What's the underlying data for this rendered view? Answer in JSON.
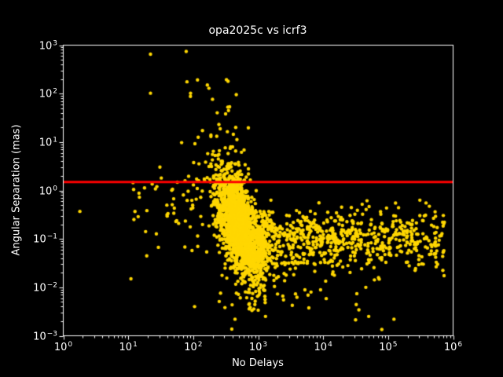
{
  "window": {
    "kind": "matplotlib-figure",
    "background": "#000000"
  },
  "chart_data": {
    "type": "scatter",
    "title": "opa2025c vs icrf3",
    "xlabel": "No Delays",
    "ylabel": "Angular Separation (mas)",
    "x_scale": "log",
    "y_scale": "log",
    "xlim": [
      1,
      1000000
    ],
    "ylim": [
      0.001,
      1000
    ],
    "grid": false,
    "legend": "none",
    "tick_base": "10",
    "x_tick_exponents": [
      0,
      1,
      2,
      3,
      4,
      5,
      6
    ],
    "x_tick_exp_display": [
      "0",
      "1",
      "2",
      "3",
      "4",
      "5",
      "6"
    ],
    "y_tick_exponents": [
      -3,
      -2,
      -1,
      0,
      1,
      2,
      3
    ],
    "y_tick_exp_display": [
      "−3",
      "−2",
      "−1",
      "0",
      "1",
      "2",
      "3"
    ],
    "colors": {
      "background": "#000000",
      "text": "#ffffff",
      "axes_frame": "#ffffff",
      "marker": "#ffd700",
      "reference_line": "#ff0000"
    },
    "marker": {
      "shape": "circle",
      "color": "#ffd700",
      "radius": 2.2
    },
    "reference_line": {
      "y": 1.5,
      "color": "#ff0000",
      "linewidth": 3
    },
    "notable_points": [
      [
        22,
        650
      ],
      [
        78,
        740
      ],
      [
        165,
        150
      ],
      [
        22,
        102
      ],
      [
        460,
        95
      ],
      [
        630,
        3.4
      ],
      [
        1.8,
        0.37
      ],
      [
        11,
        0.015
      ],
      [
        105,
        0.004
      ],
      [
        440,
        0.0022
      ],
      [
        123000,
        0.0022
      ]
    ],
    "point_cloud": {
      "seed": 1337,
      "approx_total_points": 2850,
      "clusters": [
        {
          "name": "dense-core",
          "n": 1900,
          "kind": "gauss",
          "lx_mean": 2.72,
          "lx_sigma": 0.15,
          "ly_mean": -0.78,
          "ly_sigma": 0.55,
          "tilt": -0.18,
          "ly_clamp": [
            -2.6,
            0.9
          ]
        },
        {
          "name": "right-tail",
          "n": 750,
          "kind": "power_x",
          "lx_min": 3.0,
          "lx_range": 2.88,
          "x_pow": 1.4,
          "ly_mean": -1.02,
          "ly_sigma": 0.3,
          "ly_clamp": [
            -2.0,
            -0.2
          ]
        },
        {
          "name": "upper-halo",
          "n": 75,
          "kind": "power_y",
          "ly_min": 0.2,
          "ly_range": 2.1,
          "y_pow": 2.6,
          "lx_mean": 2.42,
          "lx_sigma": 0.3,
          "lx_clamp": [
            1.15,
            2.85
          ]
        },
        {
          "name": "left-sparse",
          "n": 60,
          "kind": "uniform_x",
          "lx_min": 1.05,
          "lx_range": 1.3,
          "ly_mean": -0.35,
          "ly_sigma": 0.5,
          "ly_clamp": [
            -1.35,
            0.55
          ]
        },
        {
          "name": "low-sparse",
          "n": 40,
          "kind": "uniform_x",
          "lx_min": 2.3,
          "lx_range": 2.7,
          "ly_mean": -2.3,
          "ly_sigma": 0.3,
          "ly_clamp": [
            -2.9,
            -1.75
          ]
        }
      ]
    }
  }
}
